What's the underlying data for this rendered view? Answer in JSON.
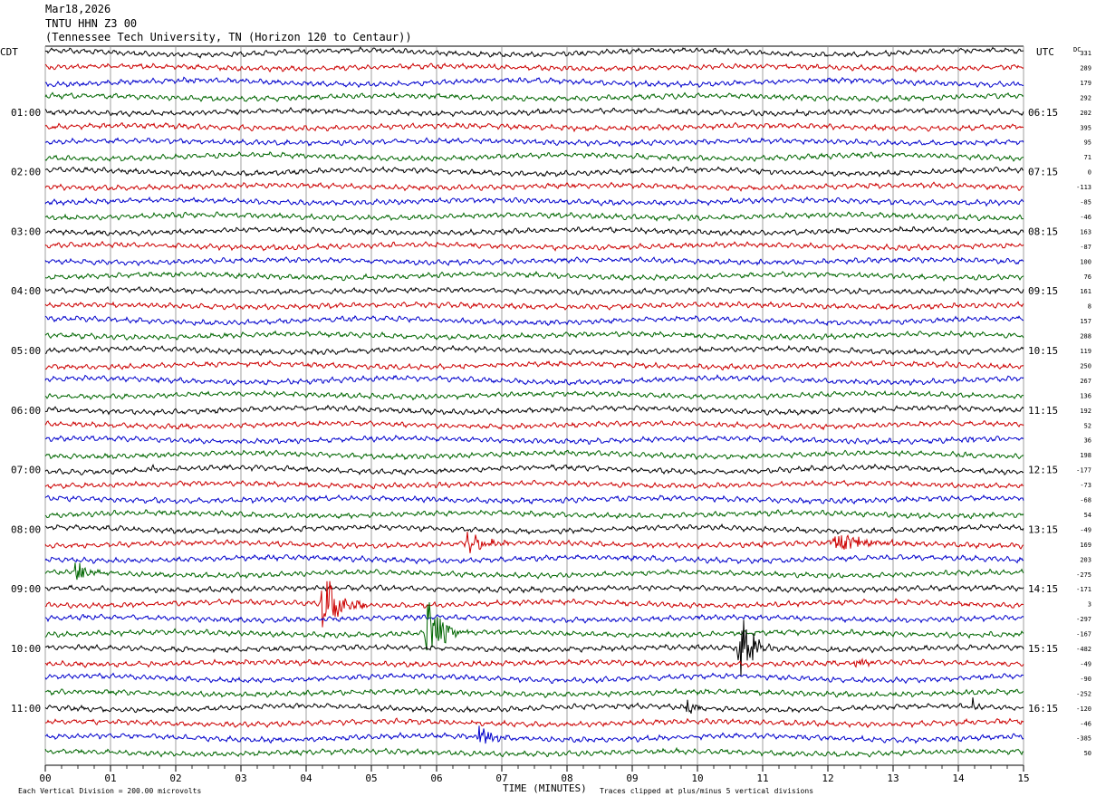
{
  "header": {
    "date": "Mar18,2026",
    "station": "TNTU HHN Z3 00",
    "location": "(Tennessee Tech University, TN (Horizon 120 to Centaur))"
  },
  "labels": {
    "left_tz": "CDT",
    "right_tz": "UTC",
    "dc": "DC",
    "xlabel": "TIME (MINUTES)",
    "scale_note": "Each Vertical Division =  200.00 microvolts",
    "clip_note": "Traces clipped at plus/minus 5 vertical divisions"
  },
  "chart_data": {
    "type": "line",
    "title": "TNTU HHN Z3 00",
    "xlabel": "TIME (MINUTES)",
    "xlim": [
      0,
      15
    ],
    "x_ticks": [
      "00",
      "01",
      "02",
      "03",
      "04",
      "05",
      "06",
      "07",
      "08",
      "09",
      "10",
      "11",
      "12",
      "13",
      "14",
      "15"
    ],
    "left_hour_labels": [
      "01:00",
      "02:00",
      "03:00",
      "04:00",
      "05:00",
      "06:00",
      "07:00",
      "08:00",
      "09:00",
      "10:00",
      "11:00"
    ],
    "right_hour_labels": [
      "06:15",
      "07:15",
      "08:15",
      "09:15",
      "10:15",
      "11:15",
      "12:15",
      "13:15",
      "14:15",
      "15:15",
      "16:15"
    ],
    "trace_colors": [
      "#000000",
      "#cc0000",
      "#0000cc",
      "#006600"
    ],
    "dc_offsets": [
      331,
      289,
      179,
      292,
      202,
      395,
      95,
      71,
      0,
      -113,
      -85,
      -46,
      163,
      -87,
      100,
      76,
      161,
      8,
      157,
      288,
      119,
      250,
      267,
      136,
      192,
      52,
      36,
      198,
      -177,
      -73,
      -68,
      54,
      -49,
      169,
      203,
      -275,
      -171,
      3,
      -297,
      -167,
      -482,
      -49,
      -90,
      -252,
      -120,
      -46,
      -385,
      50
    ],
    "events": [
      {
        "trace": 35,
        "x_min": 0.4,
        "x_max": 1.0,
        "amplitude_div": 1.5
      },
      {
        "trace": 33,
        "x_min": 6.4,
        "x_max": 7.2,
        "amplitude_div": 1.8
      },
      {
        "trace": 33,
        "x_min": 12.0,
        "x_max": 13.5,
        "amplitude_div": 1.3
      },
      {
        "trace": 37,
        "x_min": 4.2,
        "x_max": 4.9,
        "amplitude_div": 5
      },
      {
        "trace": 39,
        "x_min": 5.8,
        "x_max": 6.5,
        "amplitude_div": 5
      },
      {
        "trace": 40,
        "x_min": 10.6,
        "x_max": 11.3,
        "amplitude_div": 5
      },
      {
        "trace": 46,
        "x_min": 6.6,
        "x_max": 7.2,
        "amplitude_div": 1.8
      },
      {
        "trace": 44,
        "x_min": 9.8,
        "x_max": 10.2,
        "amplitude_div": 1.2
      },
      {
        "trace": 44,
        "x_min": 14.2,
        "x_max": 14.4,
        "amplitude_div": 1.2
      },
      {
        "trace": 41,
        "x_min": 12.4,
        "x_max": 12.8,
        "amplitude_div": 0.9
      },
      {
        "trace": 28,
        "x_min": 1.6,
        "x_max": 1.9,
        "amplitude_div": 0.8
      },
      {
        "trace": 26,
        "x_min": 14.1,
        "x_max": 14.4,
        "amplitude_div": 0.6
      }
    ]
  }
}
